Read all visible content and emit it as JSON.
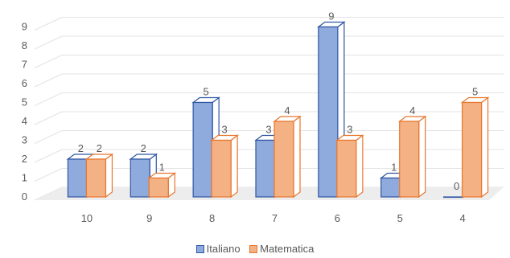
{
  "chart_data": {
    "type": "bar",
    "style": "3d-clustered-column",
    "categories": [
      "10",
      "9",
      "8",
      "7",
      "6",
      "5",
      "4"
    ],
    "series": [
      {
        "name": "Italiano",
        "values": [
          2,
          2,
          5,
          3,
          9,
          1,
          0
        ],
        "color": "#8FAADC",
        "edge": "#2F55A3"
      },
      {
        "name": "Matematica",
        "values": [
          2,
          1,
          3,
          4,
          3,
          4,
          5
        ],
        "color": "#F4B183",
        "edge": "#E8762D"
      }
    ],
    "ylim": [
      0,
      9
    ],
    "yticks": [
      "0",
      "1",
      "2",
      "3",
      "4",
      "5",
      "6",
      "7",
      "8",
      "9"
    ],
    "grid": true,
    "data_labels": true,
    "legend_position": "bottom",
    "title": "",
    "xlabel": "",
    "ylabel": ""
  }
}
